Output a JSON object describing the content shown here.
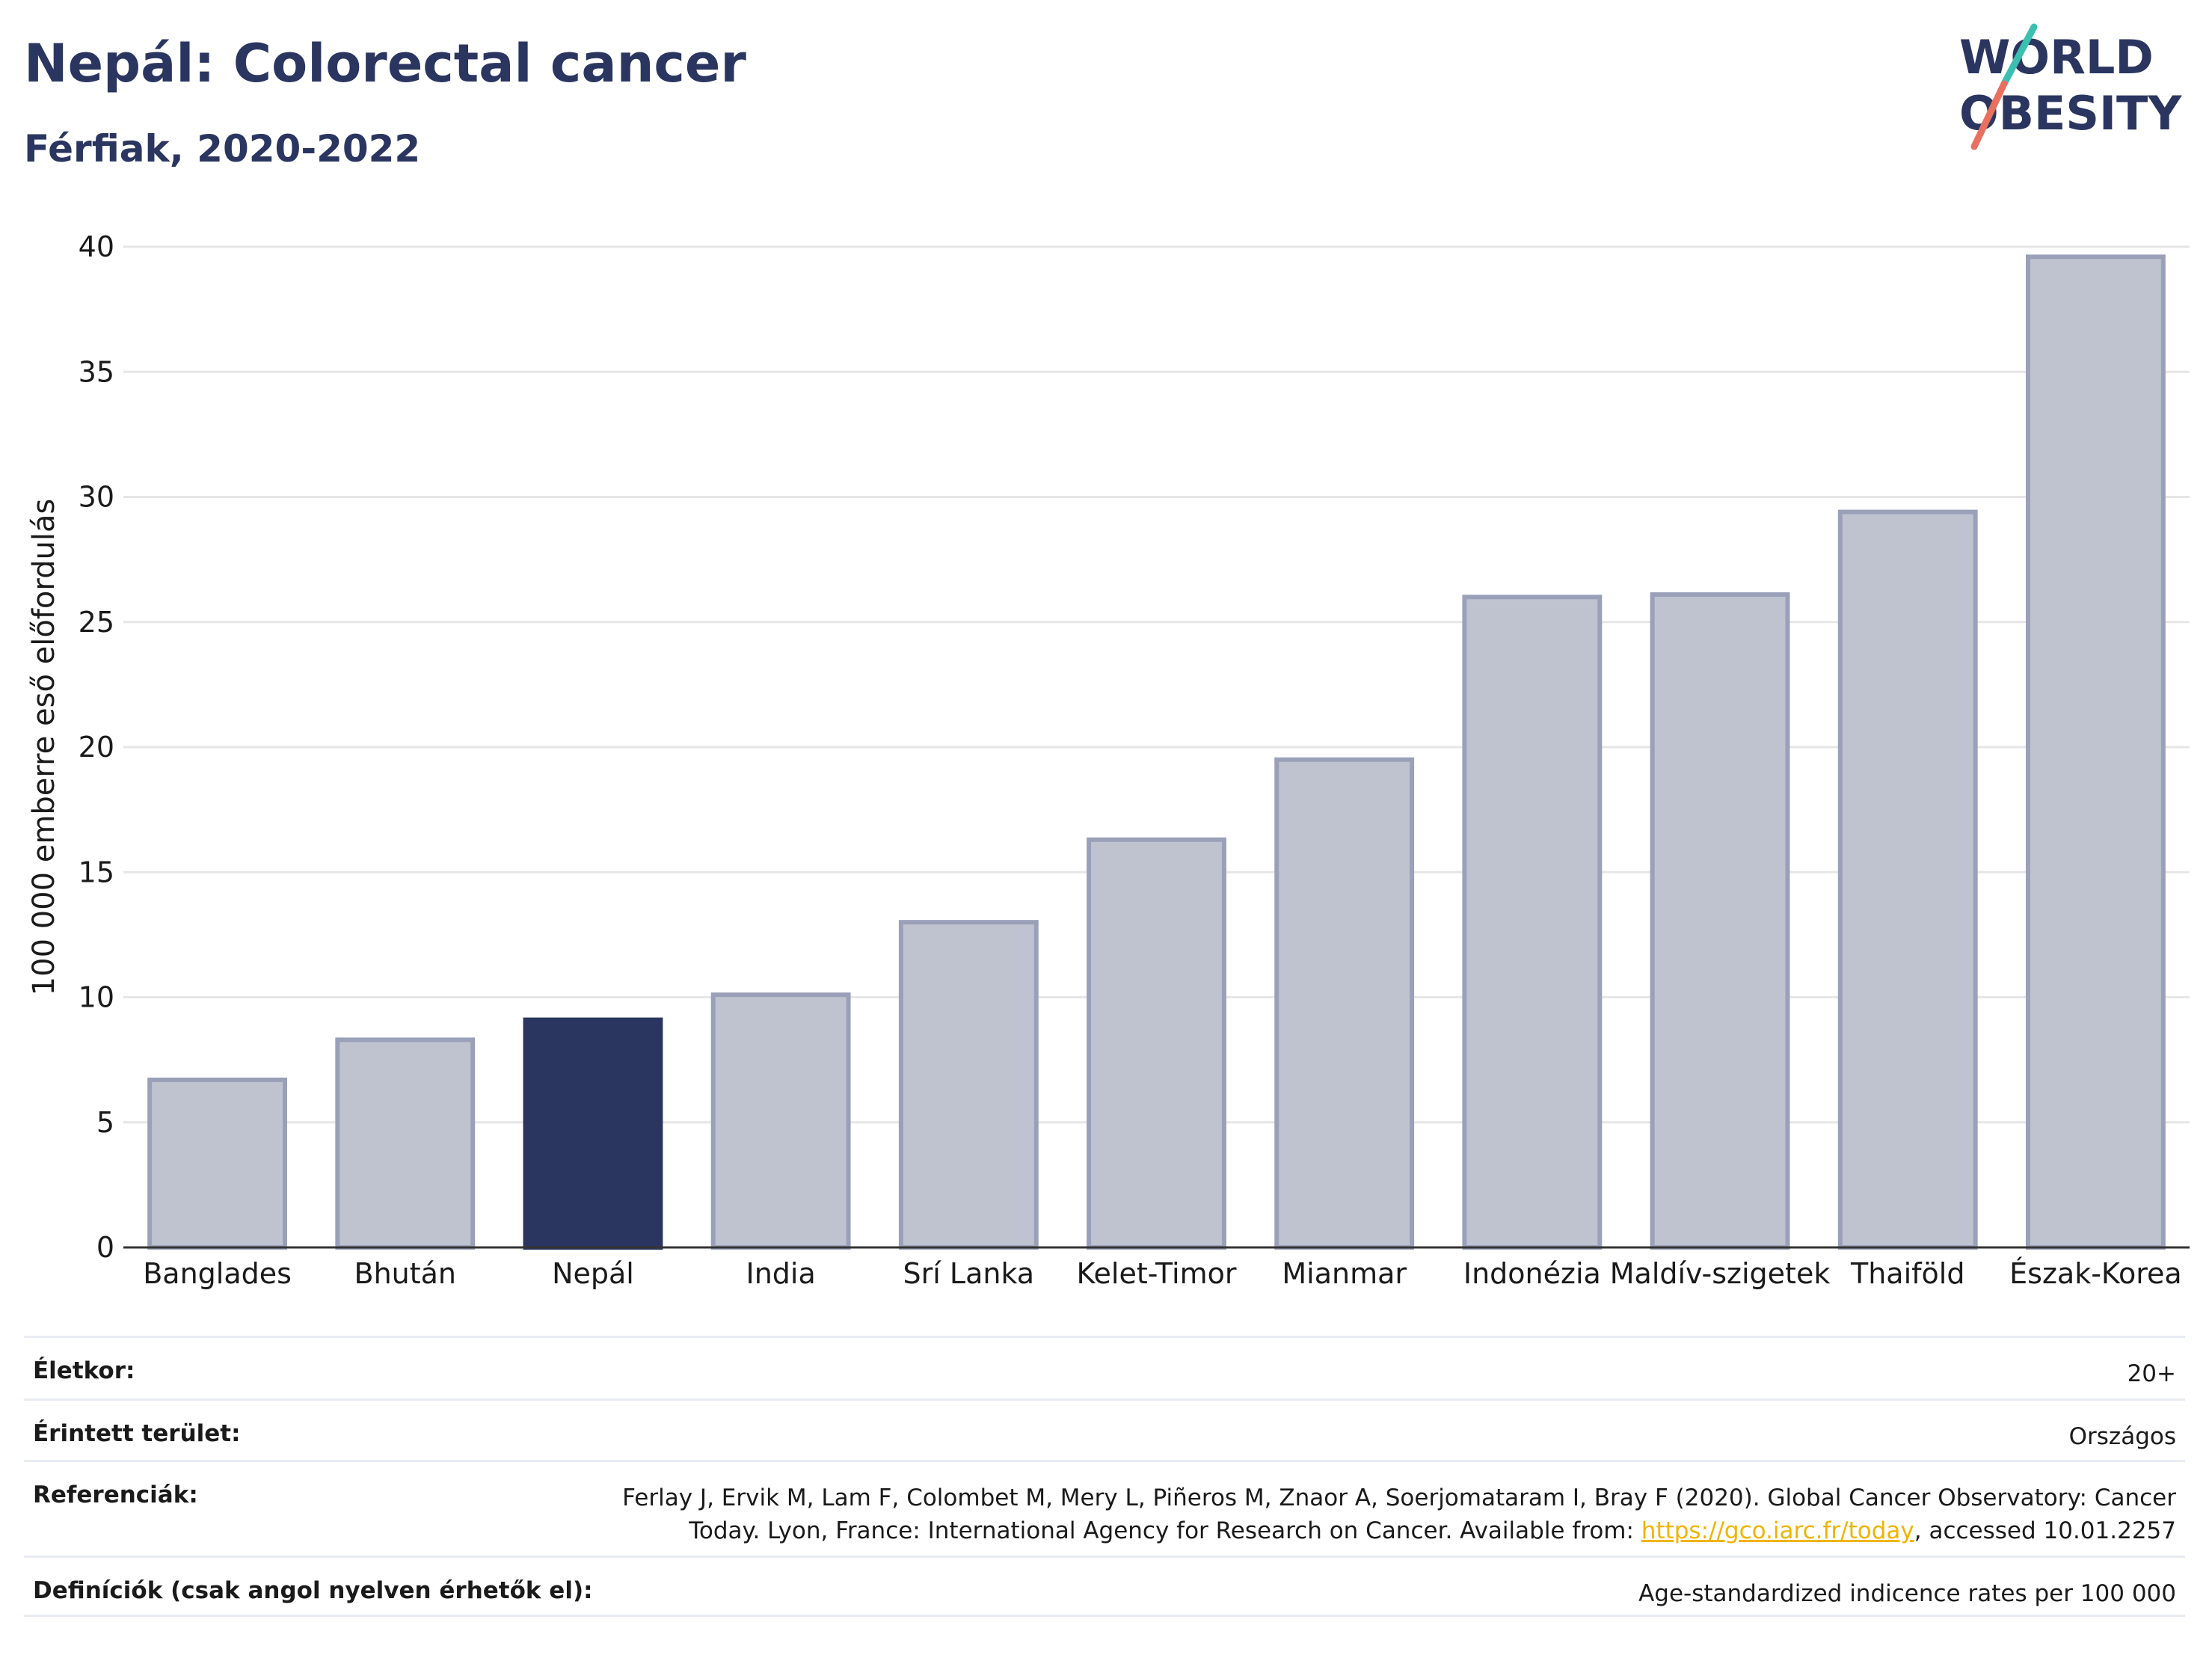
{
  "header": {
    "title": "Nepál: Colorectal cancer",
    "subtitle": "Férfiak, 2020-2022"
  },
  "logo": {
    "line1": "WORLD",
    "line2": "OBESITY"
  },
  "colors": {
    "highlight_bar": "#2a3560",
    "other_bar": "#bfc3d0",
    "other_bar_border": "#9aa0b8",
    "logo_text": "#2a3560",
    "logo_slash_top": "#3bbfb0",
    "logo_slash_bottom": "#e8705f",
    "link": "#f0b400"
  },
  "chart_data": {
    "type": "bar",
    "categories": [
      "Banglades",
      "Bhután",
      "Nepál",
      "India",
      "Srí Lanka",
      "Kelet-Timor",
      "Mianmar",
      "Indonézia",
      "Maldív-szigetek",
      "Thaiföld",
      "Észak-Korea"
    ],
    "values": [
      6.7,
      8.3,
      9.1,
      10.1,
      13.0,
      16.3,
      19.5,
      26.0,
      26.1,
      29.4,
      39.6
    ],
    "highlight": "Nepál",
    "ylabel": "100 000 emberre eső előfordulás",
    "xlabel": "",
    "ylim": [
      0,
      40
    ],
    "yticks": [
      0,
      5,
      10,
      15,
      20,
      25,
      30,
      35,
      40
    ],
    "grid": true
  },
  "meta": {
    "age_label": "Életkor:",
    "age_value": "20+",
    "area_label": "Érintett terület:",
    "area_value": "Országos",
    "ref_label": "Referenciák:",
    "ref_text_1": "Ferlay J, Ervik M, Lam F, Colombet M, Mery L, Piñeros M, Znaor A, Soerjomataram I, Bray F (2020). Global Cancer Observatory: Cancer Today. Lyon, France: International Agency for Research on Cancer. Available from: ",
    "ref_link": "https://gco.iarc.fr/today",
    "ref_text_2": ", accessed 10.01.2257",
    "def_label": "Definíciók (csak angol nyelven érhetők el):",
    "def_value": "Age-standardized indicence rates per 100 000"
  }
}
